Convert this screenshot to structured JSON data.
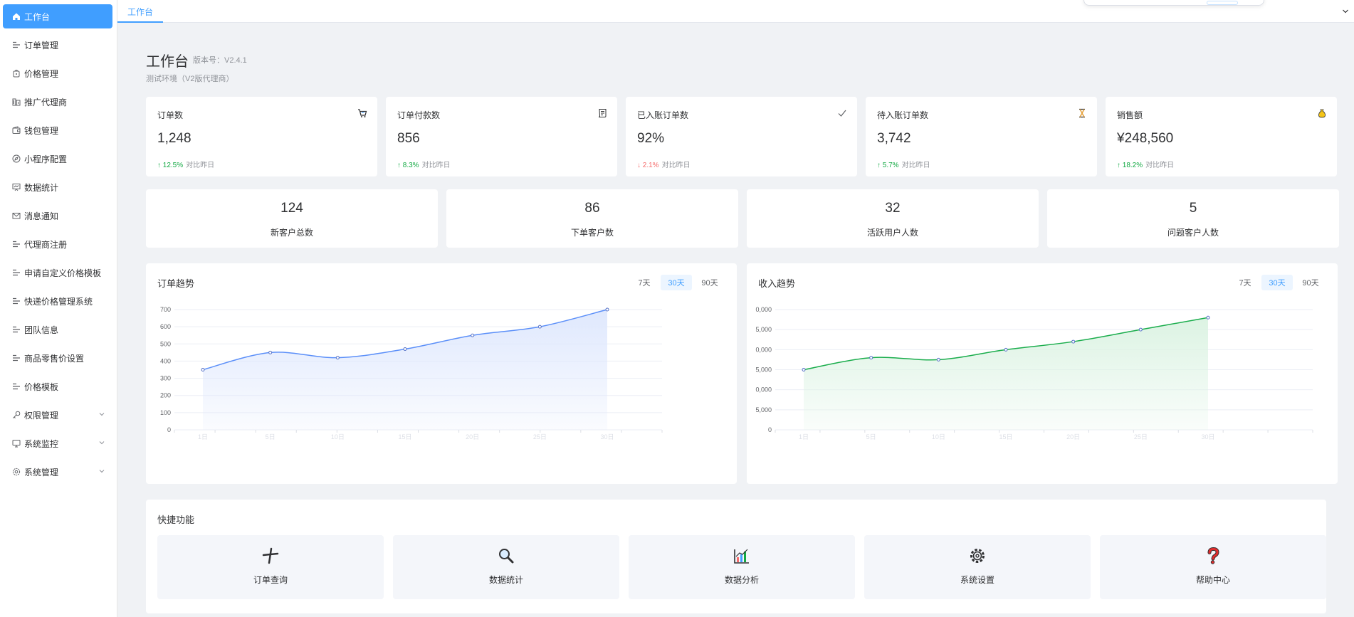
{
  "sidebar": {
    "items": [
      {
        "label": "工作台",
        "icon": "home-icon",
        "active": true
      },
      {
        "label": "订单管理",
        "icon": "list-icon"
      },
      {
        "label": "价格管理",
        "icon": "price-tag-icon"
      },
      {
        "label": "推广代理商",
        "icon": "building-icon"
      },
      {
        "label": "钱包管理",
        "icon": "wallet-icon"
      },
      {
        "label": "小程序配置",
        "icon": "compass-icon"
      },
      {
        "label": "数据统计",
        "icon": "data-board-icon"
      },
      {
        "label": "消息通知",
        "icon": "message-icon"
      },
      {
        "label": "代理商注册",
        "icon": "list-icon"
      },
      {
        "label": "申请自定义价格模板",
        "icon": "list-icon"
      },
      {
        "label": "快递价格管理系统",
        "icon": "list-icon"
      },
      {
        "label": "团队信息",
        "icon": "list-icon"
      },
      {
        "label": "商品零售价设置",
        "icon": "list-icon"
      },
      {
        "label": "价格模板",
        "icon": "list-icon"
      },
      {
        "label": "权限管理",
        "icon": "key-icon",
        "expandable": true
      },
      {
        "label": "系统监控",
        "icon": "monitor-icon",
        "expandable": true
      },
      {
        "label": "系统管理",
        "icon": "gear-icon",
        "expandable": true
      }
    ]
  },
  "tabs": {
    "active_label": "工作台"
  },
  "header": {
    "title": "工作台",
    "version": "版本号：V2.4.1",
    "env": "测试环境（V2版代理商）"
  },
  "stats": [
    {
      "label": "订单数",
      "value": "1,248",
      "change": "↑ 12.5%",
      "trend": "up",
      "compare": "对比昨日",
      "icon": "cart-icon"
    },
    {
      "label": "订单付款数",
      "value": "856",
      "change": "↑ 8.3%",
      "trend": "up",
      "compare": "对比昨日",
      "icon": "receipt-icon"
    },
    {
      "label": "已入账订单数",
      "value": "92%",
      "change": "↓ 2.1%",
      "trend": "down",
      "compare": "对比昨日",
      "icon": "check-icon"
    },
    {
      "label": "待入账订单数",
      "value": "3,742",
      "change": "↑ 5.7%",
      "trend": "up",
      "compare": "对比昨日",
      "icon": "hourglass-icon"
    },
    {
      "label": "销售额",
      "value": "¥248,560",
      "change": "↑ 18.2%",
      "trend": "up",
      "compare": "对比昨日",
      "icon": "money-bag-icon"
    }
  ],
  "customers": [
    {
      "value": "124",
      "label": "新客户总数"
    },
    {
      "value": "86",
      "label": "下单客户数"
    },
    {
      "value": "32",
      "label": "活跃用户人数"
    },
    {
      "value": "5",
      "label": "问题客户人数"
    }
  ],
  "ranges": [
    "7天",
    "30天",
    "90天"
  ],
  "active_range": "30天",
  "chart_data": [
    {
      "type": "area",
      "title": "订单趋势",
      "x": [
        "1日",
        "5日",
        "10日",
        "15日",
        "20日",
        "25日",
        "30日"
      ],
      "series": [
        {
          "values": [
            350,
            450,
            420,
            470,
            550,
            600,
            700
          ]
        }
      ],
      "yticks": [
        "0",
        "100",
        "200",
        "300",
        "400",
        "500",
        "600",
        "700"
      ],
      "ylim": [
        0,
        700
      ],
      "color": "#5b8ff9",
      "fill": "#dfe8fd",
      "grid": true
    },
    {
      "type": "area",
      "title": "收入趋势",
      "x": [
        "1日",
        "5日",
        "10日",
        "15日",
        "20日",
        "25日",
        "30日"
      ],
      "series": [
        {
          "values": [
            15000,
            18000,
            17500,
            20000,
            22000,
            25000,
            28000
          ]
        }
      ],
      "yticks": [
        "0",
        "5,000",
        "0,000",
        "5,000",
        "0,000",
        "5,000",
        "0,000"
      ],
      "ylim": [
        0,
        30000
      ],
      "color": "#1aad4c",
      "fill": "#dcf3e3",
      "grid": true
    }
  ],
  "quick": {
    "title": "快捷功能",
    "items": [
      {
        "label": "订单查询",
        "icon": "plus-cross-icon"
      },
      {
        "label": "数据统计",
        "icon": "magnifier-icon"
      },
      {
        "label": "数据分析",
        "icon": "bar-chart-icon"
      },
      {
        "label": "系统设置",
        "icon": "gear-icon"
      },
      {
        "label": "帮助中心",
        "icon": "question-mark-icon"
      }
    ]
  }
}
